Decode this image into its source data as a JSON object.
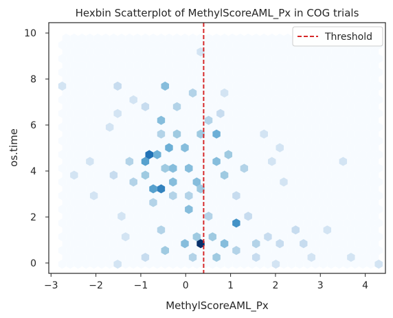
{
  "chart_data": {
    "type": "hexbin",
    "title": "Hexbin Scatterplot of MethylScoreAML_Px in COG trials",
    "xlabel": "MethylScoreAML_Px",
    "ylabel": "os.time",
    "xlim": [
      -3.05,
      4.45
    ],
    "ylim": [
      -0.45,
      10.45
    ],
    "xticks": [
      -3,
      -2,
      -1,
      0,
      1,
      2,
      3,
      4
    ],
    "yticks": [
      0,
      2,
      4,
      6,
      8,
      10
    ],
    "grid": false,
    "colormap": "Blues",
    "hex_extent": {
      "x": [
        -2.75,
        4.3
      ],
      "y": [
        -0.05,
        10.0
      ]
    },
    "hex_gridsize": 40,
    "threshold": {
      "label": "Threshold",
      "x": 0.4,
      "color": "#d62728",
      "style": "dashed"
    },
    "legend": {
      "placement": "top-right",
      "entries": [
        "Threshold"
      ]
    },
    "bins": [
      {
        "x": -0.8,
        "y": 4.6,
        "count": 10
      },
      {
        "x": -0.55,
        "y": 3.4,
        "count": 9
      },
      {
        "x": 0.4,
        "y": 0.9,
        "count": 14
      },
      {
        "x": 1.1,
        "y": 1.6,
        "count": 8
      },
      {
        "x": -0.55,
        "y": 6.1,
        "count": 5
      },
      {
        "x": -0.4,
        "y": 7.6,
        "count": 5
      },
      {
        "x": 0.7,
        "y": 5.5,
        "count": 6
      },
      {
        "x": 0.0,
        "y": 2.3,
        "count": 5
      },
      {
        "x": 0.15,
        "y": 4.2,
        "count": 5
      },
      {
        "x": -0.9,
        "y": 4.4,
        "count": 7
      },
      {
        "x": -0.65,
        "y": 4.8,
        "count": 6
      },
      {
        "x": -0.3,
        "y": 4.9,
        "count": 6
      },
      {
        "x": -0.2,
        "y": 4.2,
        "count": 5
      },
      {
        "x": 0.05,
        "y": 5.0,
        "count": 5
      },
      {
        "x": 0.2,
        "y": 3.5,
        "count": 5
      },
      {
        "x": 0.6,
        "y": 4.4,
        "count": 5
      },
      {
        "x": -0.65,
        "y": 3.3,
        "count": 7
      },
      {
        "x": -0.3,
        "y": 3.6,
        "count": 5
      },
      {
        "x": 0.3,
        "y": 3.3,
        "count": 4
      },
      {
        "x": -0.9,
        "y": 3.9,
        "count": 4
      },
      {
        "x": -0.5,
        "y": 4.0,
        "count": 4
      },
      {
        "x": 0.9,
        "y": 4.8,
        "count": 4
      },
      {
        "x": -0.2,
        "y": 5.7,
        "count": 4
      },
      {
        "x": 0.3,
        "y": 5.5,
        "count": 4
      },
      {
        "x": 0.9,
        "y": 3.7,
        "count": 4
      },
      {
        "x": -0.1,
        "y": 0.9,
        "count": 5
      },
      {
        "x": 0.2,
        "y": 1.2,
        "count": 4
      },
      {
        "x": 0.6,
        "y": 1.3,
        "count": 4
      },
      {
        "x": 0.9,
        "y": 0.7,
        "count": 5
      },
      {
        "x": -0.4,
        "y": 0.6,
        "count": 4
      },
      {
        "x": -0.5,
        "y": 1.4,
        "count": 3
      },
      {
        "x": 1.2,
        "y": 0.5,
        "count": 3
      },
      {
        "x": 1.5,
        "y": 0.9,
        "count": 3
      },
      {
        "x": 0.5,
        "y": 2.1,
        "count": 3
      },
      {
        "x": 0.7,
        "y": 0.2,
        "count": 4
      },
      {
        "x": 0.1,
        "y": 0.3,
        "count": 3
      },
      {
        "x": -0.7,
        "y": 2.6,
        "count": 3
      },
      {
        "x": -0.3,
        "y": 2.9,
        "count": 3
      },
      {
        "x": 0.1,
        "y": 3.0,
        "count": 3
      },
      {
        "x": -1.1,
        "y": 3.5,
        "count": 3
      },
      {
        "x": -1.3,
        "y": 4.4,
        "count": 3
      },
      {
        "x": -1.6,
        "y": 3.7,
        "count": 2
      },
      {
        "x": -0.6,
        "y": 5.6,
        "count": 3
      },
      {
        "x": 0.5,
        "y": 6.3,
        "count": 3
      },
      {
        "x": 0.8,
        "y": 6.6,
        "count": 2
      },
      {
        "x": -0.2,
        "y": 6.9,
        "count": 3
      },
      {
        "x": 0.1,
        "y": 7.3,
        "count": 3
      },
      {
        "x": -0.9,
        "y": 6.8,
        "count": 2
      },
      {
        "x": -1.6,
        "y": 7.7,
        "count": 2
      },
      {
        "x": 1.3,
        "y": 4.2,
        "count": 3
      },
      {
        "x": 1.1,
        "y": 3.0,
        "count": 2
      },
      {
        "x": 1.4,
        "y": 2.1,
        "count": 2
      },
      {
        "x": 1.8,
        "y": 1.3,
        "count": 2
      },
      {
        "x": 2.1,
        "y": 0.8,
        "count": 2
      },
      {
        "x": 2.6,
        "y": 0.7,
        "count": 2
      },
      {
        "x": 2.4,
        "y": 1.4,
        "count": 2
      },
      {
        "x": 1.6,
        "y": 0.3,
        "count": 2
      },
      {
        "x": 2.0,
        "y": 0.0,
        "count": 1
      },
      {
        "x": 2.8,
        "y": 0.2,
        "count": 1
      },
      {
        "x": 3.2,
        "y": 1.3,
        "count": 1
      },
      {
        "x": 3.6,
        "y": 0.3,
        "count": 1
      },
      {
        "x": 4.3,
        "y": 0.0,
        "count": 1
      },
      {
        "x": -2.8,
        "y": 7.8,
        "count": 1
      },
      {
        "x": -2.2,
        "y": 4.3,
        "count": 1
      },
      {
        "x": -2.5,
        "y": 3.8,
        "count": 1
      },
      {
        "x": -2.0,
        "y": 3.0,
        "count": 1
      },
      {
        "x": -1.4,
        "y": 2.2,
        "count": 1
      },
      {
        "x": -1.7,
        "y": 5.8,
        "count": 1
      },
      {
        "x": -1.5,
        "y": 6.4,
        "count": 1
      },
      {
        "x": -1.1,
        "y": 7.1,
        "count": 1
      },
      {
        "x": 0.9,
        "y": 7.5,
        "count": 1
      },
      {
        "x": 1.7,
        "y": 5.6,
        "count": 1
      },
      {
        "x": 2.1,
        "y": 5.2,
        "count": 1
      },
      {
        "x": 2.2,
        "y": 3.6,
        "count": 1
      },
      {
        "x": 3.5,
        "y": 4.5,
        "count": 1
      },
      {
        "x": 1.9,
        "y": 4.5,
        "count": 1
      },
      {
        "x": -1.3,
        "y": 1.0,
        "count": 1
      },
      {
        "x": -0.9,
        "y": 0.2,
        "count": 2
      },
      {
        "x": -1.5,
        "y": 0.0,
        "count": 1
      },
      {
        "x": 0.4,
        "y": 9.2,
        "count": 1
      }
    ]
  }
}
